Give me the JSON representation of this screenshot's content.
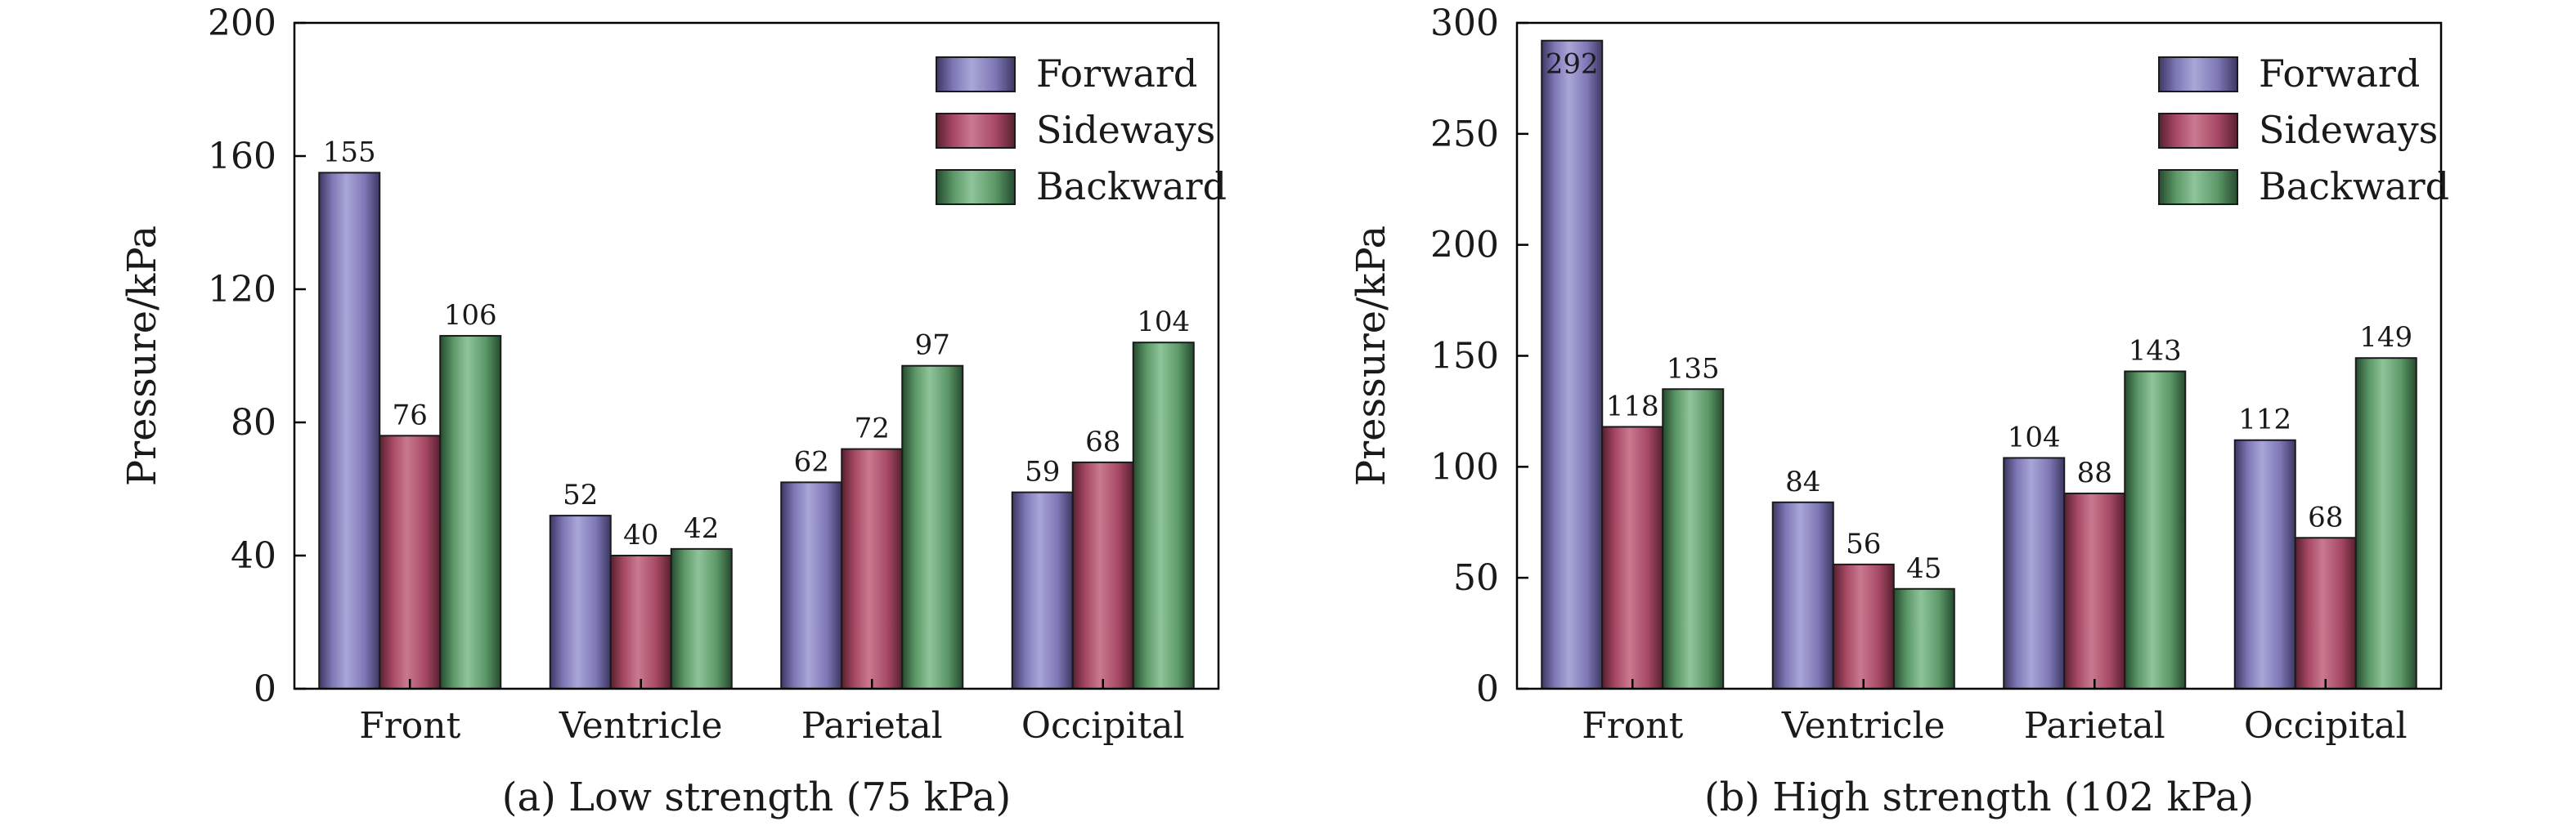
{
  "colors": {
    "Forward": {
      "light": "#a9a6d8",
      "mid": "#7e78b6",
      "dark": "#3c3762"
    },
    "Sideways": {
      "light": "#c97a90",
      "mid": "#a84965",
      "dark": "#57202f"
    },
    "Backward": {
      "light": "#8fc49a",
      "mid": "#5c9868",
      "dark": "#254a2e"
    }
  },
  "chart_data": [
    {
      "type": "bar",
      "caption": "(a) Low strength (75 kPa)",
      "xlabel": "",
      "ylabel": "Pressure/kPa",
      "ylim": [
        0,
        200
      ],
      "yticks": [
        0,
        40,
        80,
        120,
        160,
        200
      ],
      "categories": [
        "Front",
        "Ventricle",
        "Parietal",
        "Occipital"
      ],
      "legend_position": "top-right",
      "series": [
        {
          "name": "Forward",
          "values": [
            155,
            52,
            62,
            59
          ]
        },
        {
          "name": "Sideways",
          "values": [
            76,
            40,
            72,
            68
          ]
        },
        {
          "name": "Backward",
          "values": [
            106,
            42,
            97,
            104
          ]
        }
      ]
    },
    {
      "type": "bar",
      "caption": "(b) High strength (102 kPa)",
      "xlabel": "",
      "ylabel": "Pressure/kPa",
      "ylim": [
        0,
        300
      ],
      "yticks": [
        0,
        50,
        100,
        150,
        200,
        250,
        300
      ],
      "categories": [
        "Front",
        "Ventricle",
        "Parietal",
        "Occipital"
      ],
      "legend_position": "top-right",
      "series": [
        {
          "name": "Forward",
          "values": [
            292,
            84,
            104,
            112
          ]
        },
        {
          "name": "Sideways",
          "values": [
            118,
            56,
            88,
            68
          ]
        },
        {
          "name": "Backward",
          "values": [
            135,
            45,
            143,
            149
          ]
        }
      ]
    }
  ]
}
